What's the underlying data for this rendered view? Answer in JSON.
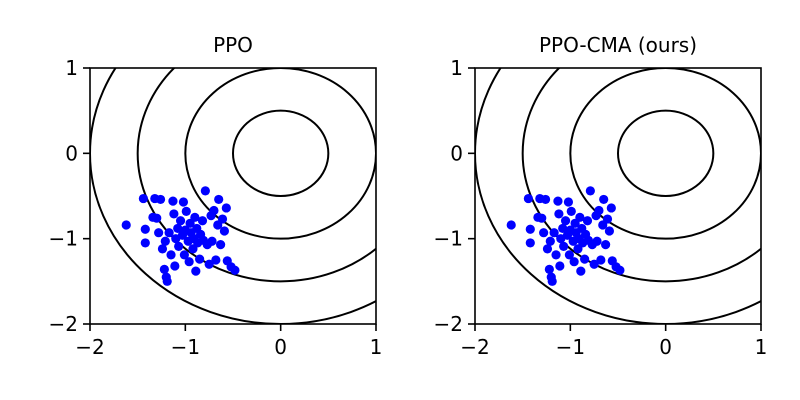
{
  "chart_data": [
    {
      "type": "scatter",
      "title": "PPO",
      "xlabel": "",
      "ylabel": "",
      "xlim": [
        -2,
        1
      ],
      "ylim": [
        -2,
        1
      ],
      "xticks": [
        "−2",
        "−1",
        "0",
        "1"
      ],
      "yticks": [
        "1",
        "0",
        "−1",
        "−2"
      ],
      "grid": false,
      "contours": {
        "center": [
          0,
          0
        ],
        "radii": [
          0.5,
          1.0,
          1.5,
          2.0
        ]
      },
      "point_color": "#0000ff",
      "contour_color": "#000000",
      "points": [
        [
          -1.62,
          -0.84
        ],
        [
          -1.44,
          -0.53
        ],
        [
          -1.42,
          -0.89
        ],
        [
          -1.42,
          -1.05
        ],
        [
          -1.34,
          -0.75
        ],
        [
          -1.32,
          -0.53
        ],
        [
          -1.3,
          -0.76
        ],
        [
          -1.28,
          -0.93
        ],
        [
          -1.26,
          -0.54
        ],
        [
          -1.24,
          -1.12
        ],
        [
          -1.22,
          -1.36
        ],
        [
          -1.21,
          -1.03
        ],
        [
          -1.2,
          -1.45
        ],
        [
          -1.19,
          -1.5
        ],
        [
          -1.17,
          -0.93
        ],
        [
          -1.15,
          -1.19
        ],
        [
          -1.13,
          -0.56
        ],
        [
          -1.12,
          -0.71
        ],
        [
          -1.11,
          -1.32
        ],
        [
          -1.1,
          -1.0
        ],
        [
          -1.08,
          -0.88
        ],
        [
          -1.07,
          -1.09
        ],
        [
          -1.05,
          -0.79
        ],
        [
          -1.03,
          -0.96
        ],
        [
          -1.02,
          -0.57
        ],
        [
          -1.01,
          -1.19
        ],
        [
          -1.0,
          -0.9
        ],
        [
          -0.99,
          -0.68
        ],
        [
          -0.97,
          -1.03
        ],
        [
          -0.96,
          -1.27
        ],
        [
          -0.95,
          -0.82
        ],
        [
          -0.94,
          -0.93
        ],
        [
          -0.92,
          -1.12
        ],
        [
          -0.91,
          -1.0
        ],
        [
          -0.9,
          -0.75
        ],
        [
          -0.89,
          -1.38
        ],
        [
          -0.88,
          -0.88
        ],
        [
          -0.87,
          -1.05
        ],
        [
          -0.85,
          -1.24
        ],
        [
          -0.84,
          -0.95
        ],
        [
          -0.82,
          -0.79
        ],
        [
          -0.81,
          -1.02
        ],
        [
          -0.79,
          -0.44
        ],
        [
          -0.77,
          -1.07
        ],
        [
          -0.75,
          -1.3
        ],
        [
          -0.73,
          -0.73
        ],
        [
          -0.72,
          -1.03
        ],
        [
          -0.7,
          -0.67
        ],
        [
          -0.68,
          -1.25
        ],
        [
          -0.66,
          -0.84
        ],
        [
          -0.65,
          -0.54
        ],
        [
          -0.63,
          -1.07
        ],
        [
          -0.61,
          -0.77
        ],
        [
          -0.59,
          -0.91
        ],
        [
          -0.57,
          -0.64
        ],
        [
          -0.56,
          -1.26
        ],
        [
          -0.52,
          -1.33
        ],
        [
          -0.48,
          -1.37
        ]
      ]
    },
    {
      "type": "scatter",
      "title": "PPO-CMA (ours)",
      "xlabel": "",
      "ylabel": "",
      "xlim": [
        -2,
        1
      ],
      "ylim": [
        -2,
        1
      ],
      "xticks": [
        "−2",
        "−1",
        "0",
        "1"
      ],
      "yticks": [
        "1",
        "0",
        "−1",
        "−2"
      ],
      "grid": false,
      "contours": {
        "center": [
          0,
          0
        ],
        "radii": [
          0.5,
          1.0,
          1.5,
          2.0
        ]
      },
      "point_color": "#0000ff",
      "contour_color": "#000000",
      "points": [
        [
          -1.62,
          -0.84
        ],
        [
          -1.44,
          -0.53
        ],
        [
          -1.42,
          -0.89
        ],
        [
          -1.42,
          -1.05
        ],
        [
          -1.34,
          -0.75
        ],
        [
          -1.32,
          -0.53
        ],
        [
          -1.3,
          -0.76
        ],
        [
          -1.28,
          -0.93
        ],
        [
          -1.26,
          -0.54
        ],
        [
          -1.24,
          -1.12
        ],
        [
          -1.22,
          -1.36
        ],
        [
          -1.21,
          -1.03
        ],
        [
          -1.2,
          -1.45
        ],
        [
          -1.19,
          -1.5
        ],
        [
          -1.17,
          -0.93
        ],
        [
          -1.15,
          -1.19
        ],
        [
          -1.13,
          -0.56
        ],
        [
          -1.12,
          -0.71
        ],
        [
          -1.11,
          -1.32
        ],
        [
          -1.1,
          -1.0
        ],
        [
          -1.08,
          -0.88
        ],
        [
          -1.07,
          -1.09
        ],
        [
          -1.05,
          -0.79
        ],
        [
          -1.03,
          -0.96
        ],
        [
          -1.02,
          -0.57
        ],
        [
          -1.01,
          -1.19
        ],
        [
          -1.0,
          -0.9
        ],
        [
          -0.99,
          -0.68
        ],
        [
          -0.97,
          -1.03
        ],
        [
          -0.96,
          -1.27
        ],
        [
          -0.95,
          -0.82
        ],
        [
          -0.94,
          -0.93
        ],
        [
          -0.92,
          -1.12
        ],
        [
          -0.91,
          -1.0
        ],
        [
          -0.9,
          -0.75
        ],
        [
          -0.89,
          -1.38
        ],
        [
          -0.88,
          -0.88
        ],
        [
          -0.87,
          -1.05
        ],
        [
          -0.85,
          -1.24
        ],
        [
          -0.84,
          -0.95
        ],
        [
          -0.82,
          -0.79
        ],
        [
          -0.81,
          -1.02
        ],
        [
          -0.79,
          -0.44
        ],
        [
          -0.77,
          -1.07
        ],
        [
          -0.75,
          -1.3
        ],
        [
          -0.73,
          -0.73
        ],
        [
          -0.72,
          -1.03
        ],
        [
          -0.7,
          -0.67
        ],
        [
          -0.68,
          -1.25
        ],
        [
          -0.66,
          -0.84
        ],
        [
          -0.65,
          -0.54
        ],
        [
          -0.63,
          -1.07
        ],
        [
          -0.61,
          -0.77
        ],
        [
          -0.59,
          -0.91
        ],
        [
          -0.57,
          -0.64
        ],
        [
          -0.56,
          -1.26
        ],
        [
          -0.52,
          -1.33
        ],
        [
          -0.48,
          -1.37
        ]
      ]
    }
  ]
}
